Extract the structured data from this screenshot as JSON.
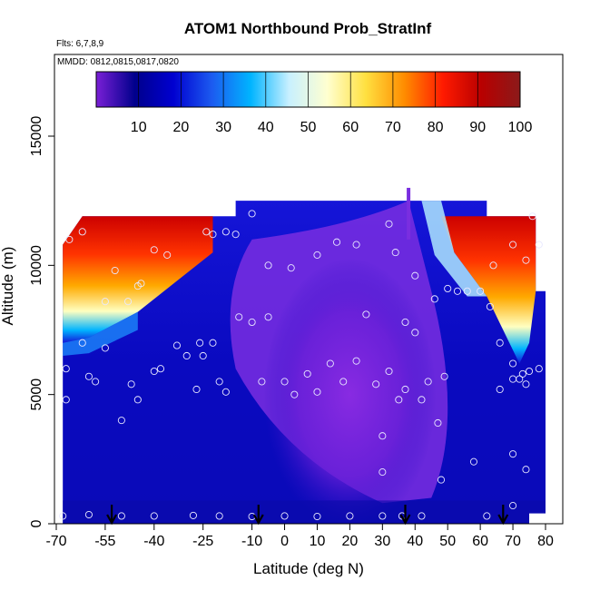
{
  "chart_data": {
    "type": "heatmap",
    "title": "ATOM1 Northbound Prob_StratInf",
    "subtitle_flts": "Flts: 6,7,8,9",
    "subtitle_mmdd": "MMDD: 0812,0815,0817,0820",
    "xlabel": "Latitude (deg N)",
    "ylabel": "Altitude (m)",
    "xlim": [
      -70,
      85
    ],
    "ylim": [
      0,
      17500
    ],
    "x_ticks": [
      -70,
      -55,
      -40,
      -25,
      -10,
      0,
      10,
      20,
      30,
      40,
      50,
      60,
      70,
      80
    ],
    "y_ticks": [
      0,
      5000,
      10000,
      15000
    ],
    "colorbar": {
      "range": [
        0,
        100
      ],
      "ticks": [
        10,
        20,
        30,
        40,
        50,
        60,
        70,
        80,
        90,
        100
      ],
      "colors": [
        "#7a1fd6",
        "#00008c",
        "#0000d0",
        "#1c5bf0",
        "#00b4ff",
        "#c8f0ff",
        "#ffffd0",
        "#ffe040",
        "#ff8c00",
        "#ff1a00",
        "#b80000",
        "#8b1a1a"
      ]
    },
    "sample_points": [
      [
        -68,
        300
      ],
      [
        -60,
        350
      ],
      [
        -50,
        300
      ],
      [
        -40,
        300
      ],
      [
        -28,
        320
      ],
      [
        -20,
        300
      ],
      [
        -10,
        280
      ],
      [
        0,
        300
      ],
      [
        10,
        280
      ],
      [
        20,
        300
      ],
      [
        30,
        300
      ],
      [
        36,
        300
      ],
      [
        42,
        300
      ],
      [
        62,
        300
      ],
      [
        70,
        700
      ],
      [
        -67,
        6000
      ],
      [
        -67,
        4800
      ],
      [
        -62,
        7000
      ],
      [
        -60,
        5700
      ],
      [
        -58,
        5500
      ],
      [
        -55,
        6800
      ],
      [
        -50,
        4000
      ],
      [
        -47,
        5400
      ],
      [
        -45,
        4800
      ],
      [
        -40,
        5900
      ],
      [
        -38,
        6000
      ],
      [
        -33,
        6900
      ],
      [
        -30,
        6500
      ],
      [
        -27,
        5200
      ],
      [
        -25,
        6500
      ],
      [
        -20,
        5500
      ],
      [
        -18,
        5100
      ],
      [
        -14,
        8000
      ],
      [
        -10,
        7800
      ],
      [
        -7,
        5500
      ],
      [
        0,
        5500
      ],
      [
        3,
        5000
      ],
      [
        7,
        5800
      ],
      [
        10,
        5100
      ],
      [
        14,
        6200
      ],
      [
        18,
        5500
      ],
      [
        22,
        6300
      ],
      [
        28,
        5400
      ],
      [
        32,
        5900
      ],
      [
        35,
        4800
      ],
      [
        37,
        5200
      ],
      [
        40,
        7400
      ],
      [
        42,
        4800
      ],
      [
        44,
        5500
      ],
      [
        47,
        3900
      ],
      [
        49,
        5700
      ],
      [
        -22,
        7000
      ],
      [
        -5,
        8000
      ],
      [
        25,
        8100
      ],
      [
        37,
        7800
      ],
      [
        -66,
        11000
      ],
      [
        -62,
        11300
      ],
      [
        -48,
        8600
      ],
      [
        -45,
        9200
      ],
      [
        -40,
        10600
      ],
      [
        -36,
        10400
      ],
      [
        -22,
        11200
      ],
      [
        -18,
        11300
      ],
      [
        -10,
        12000
      ],
      [
        -5,
        10000
      ],
      [
        2,
        9900
      ],
      [
        10,
        10400
      ],
      [
        16,
        10900
      ],
      [
        22,
        10800
      ],
      [
        32,
        11600
      ],
      [
        34,
        10500
      ],
      [
        40,
        9600
      ],
      [
        46,
        8700
      ],
      [
        50,
        9100
      ],
      [
        53,
        9000
      ],
      [
        56,
        9000
      ],
      [
        60,
        9000
      ],
      [
        64,
        10000
      ],
      [
        70,
        10800
      ],
      [
        74,
        10200
      ],
      [
        76,
        11900
      ],
      [
        78,
        10800
      ],
      [
        63,
        8400
      ],
      [
        66,
        7000
      ],
      [
        70,
        6200
      ],
      [
        73,
        5800
      ],
      [
        75,
        5900
      ],
      [
        -24,
        11300
      ],
      [
        -15,
        11200
      ],
      [
        -52,
        9800
      ],
      [
        -55,
        8600
      ],
      [
        -26,
        7000
      ],
      [
        -44,
        9300
      ],
      [
        30,
        3400
      ],
      [
        30,
        2000
      ],
      [
        48,
        1700
      ],
      [
        58,
        2400
      ],
      [
        70,
        2700
      ],
      [
        74,
        2100
      ],
      [
        70,
        5600
      ],
      [
        66,
        5200
      ],
      [
        72,
        5600
      ],
      [
        74,
        5400
      ],
      [
        78,
        6000
      ]
    ],
    "annotations": {
      "arrow_latitudes": [
        -53,
        -8,
        37,
        67
      ]
    }
  }
}
